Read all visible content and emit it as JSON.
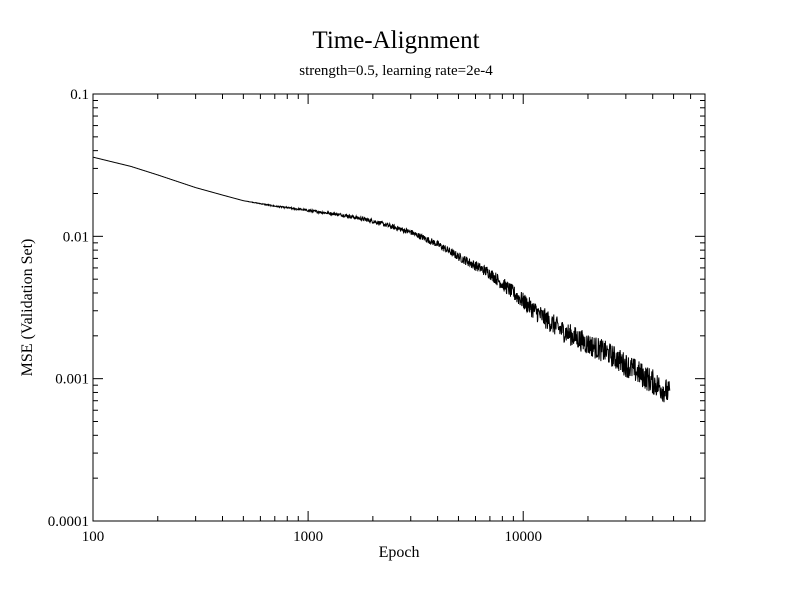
{
  "chart_data": {
    "type": "line",
    "title": "Time-Alignment",
    "subtitle": "strength=0.5,  learning rate=2e-4",
    "xlabel": "Epoch",
    "ylabel": "MSE (Validation Set)",
    "xscale": "log",
    "yscale": "log",
    "xlim": [
      100,
      70000
    ],
    "ylim": [
      0.0001,
      0.1
    ],
    "x_ticks": [
      {
        "value": 100,
        "label": "100"
      },
      {
        "value": 1000,
        "label": "1000"
      },
      {
        "value": 10000,
        "label": "10000"
      }
    ],
    "y_ticks": [
      {
        "value": 0.0001,
        "label": "0.0001"
      },
      {
        "value": 0.001,
        "label": "0.001"
      },
      {
        "value": 0.01,
        "label": "0.01"
      },
      {
        "value": 0.1,
        "label": "0.1"
      }
    ],
    "grid": false,
    "legend": "none",
    "line_color": "#000000",
    "series": [
      {
        "x": [
          100,
          150,
          200,
          300,
          400,
          500,
          700,
          1000,
          1500,
          2000,
          3000,
          4000,
          5000,
          7000,
          10000,
          12000,
          15000,
          20000,
          25000,
          30000,
          40000,
          48000
        ],
        "y": [
          0.036,
          0.031,
          0.027,
          0.022,
          0.0195,
          0.0178,
          0.0163,
          0.0152,
          0.014,
          0.0128,
          0.0107,
          0.0088,
          0.0072,
          0.0055,
          0.0035,
          0.0028,
          0.0022,
          0.00175,
          0.0015,
          0.00125,
          0.00095,
          0.00078
        ],
        "noise": [
          0,
          0,
          0,
          0,
          0,
          0,
          0.005,
          0.008,
          0.012,
          0.015,
          0.02,
          0.025,
          0.03,
          0.04,
          0.06,
          0.07,
          0.075,
          0.08,
          0.08,
          0.085,
          0.09,
          0.09
        ]
      }
    ]
  }
}
